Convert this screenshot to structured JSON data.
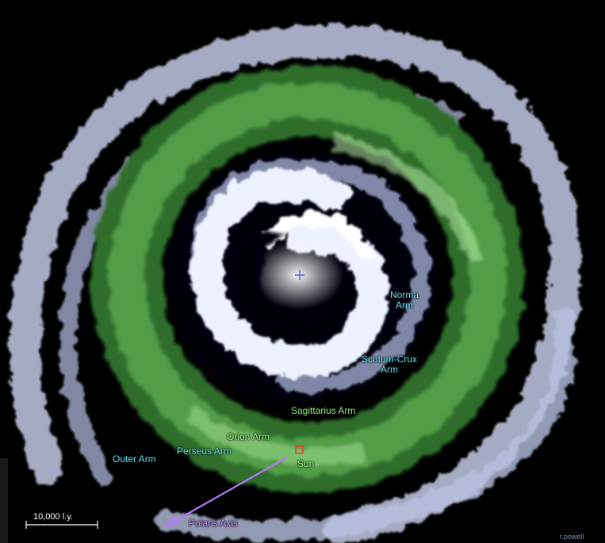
{
  "labels": {
    "norma_arm": [
      "Norma",
      "Arm"
    ],
    "scutum_crux_arm": [
      "Scutum-Crux",
      "Arm"
    ],
    "sagittarius_arm": "Sagittarius Arm",
    "orion_arm": "Orion Arm",
    "perseus_arm": "Perseus Arm",
    "outer_arm": "Outer Arm",
    "sun": "Sun",
    "polaris_axis": "Polaris Axis"
  },
  "scale_bar": {
    "label": "10,000 l.y."
  },
  "credit": "r.powell",
  "colors": {
    "background": "#000000",
    "inner_arm": "#f2f4ff",
    "outer_arm": "#c8cde6",
    "sagittarius_band": "#3f8a3a",
    "sagittarius_highlight": "#a9e89a",
    "cyan_label": "#5fe3f0",
    "green_label": "#8df07a",
    "violet_axis": "#b677ff",
    "sun_marker": "#ff3a1e",
    "center_marker": "#4a5cff"
  }
}
